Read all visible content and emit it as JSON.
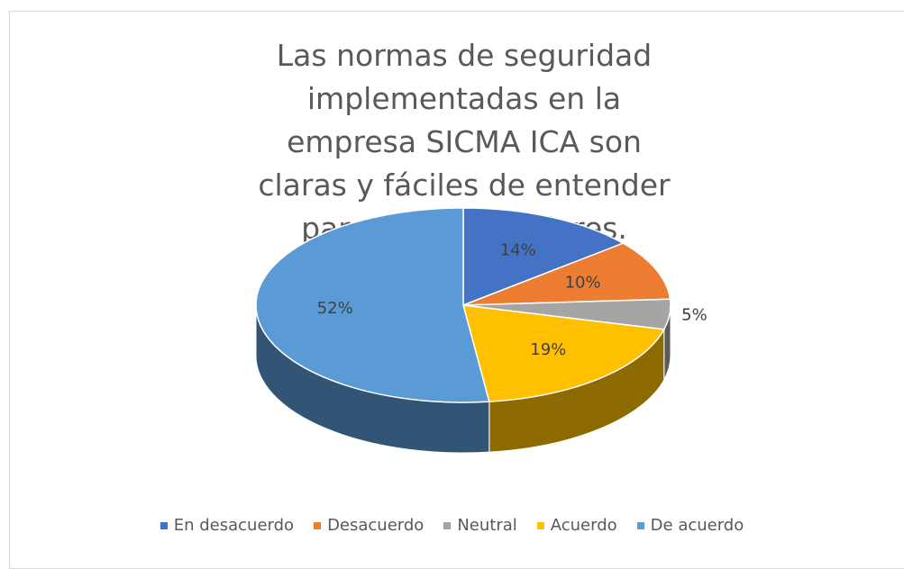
{
  "chart_data": {
    "type": "pie",
    "title": "Las normas de seguridad implementadas en la empresa SICMA ICA son claras y fáciles de entender para los trabajadores.",
    "categories": [
      "En desacuerdo",
      "Desacuerdo",
      "Neutral",
      "Acuerdo",
      "De acuerdo"
    ],
    "values": [
      14,
      10,
      5,
      19,
      52
    ],
    "value_labels": [
      "14%",
      "10%",
      "5%",
      "19%",
      "52%"
    ],
    "colors": [
      "#4472c4",
      "#ed7d31",
      "#a5a5a5",
      "#ffc000",
      "#5b9bd5"
    ],
    "legend": "bottom"
  }
}
